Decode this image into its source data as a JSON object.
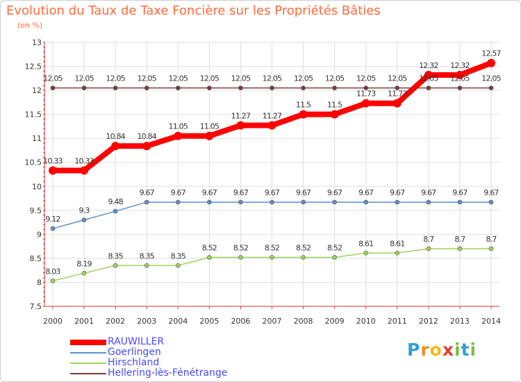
{
  "chart_data": {
    "type": "line",
    "title": "Evolution du Taux de Taxe Foncière sur les Propriétés Bâties",
    "unit_label": "(en %)",
    "x": [
      "2000",
      "2001",
      "2002",
      "2003",
      "2004",
      "2005",
      "2006",
      "2007",
      "2008",
      "2009",
      "2010",
      "2011",
      "2012",
      "2013",
      "2014"
    ],
    "ylim": [
      7.5,
      13
    ],
    "yticks": [
      "7.5",
      "8",
      "8.5",
      "9",
      "9.5",
      "10",
      "10.5",
      "11",
      "11.5",
      "12",
      "12.5",
      "13"
    ],
    "series": [
      {
        "name": "RAUWILLER",
        "color": "#ff0000",
        "values": [
          10.33,
          10.33,
          10.84,
          10.84,
          11.05,
          11.05,
          11.27,
          11.27,
          11.5,
          11.5,
          11.73,
          11.73,
          12.32,
          12.32,
          12.57
        ],
        "labels": [
          "10.33",
          "10.33",
          "10.84",
          "10.84",
          "11.05",
          "11.05",
          "11.27",
          "11.27",
          "11.5",
          "11.5",
          "11.73",
          "11.73",
          "12.32",
          "12.32",
          "12.57"
        ]
      },
      {
        "name": "Goerlingen",
        "color": "#5b8fc9",
        "values": [
          9.12,
          9.3,
          9.48,
          9.67,
          9.67,
          9.67,
          9.67,
          9.67,
          9.67,
          9.67,
          9.67,
          9.67,
          9.67,
          9.67,
          9.67
        ],
        "labels": [
          "9.12",
          "9.3",
          "9.48",
          "9.67",
          "9.67",
          "9.67",
          "9.67",
          "9.67",
          "9.67",
          "9.67",
          "9.67",
          "9.67",
          "9.67",
          "9.67",
          "9.67"
        ]
      },
      {
        "name": "Hirschland",
        "color": "#9ed25a",
        "values": [
          8.03,
          8.19,
          8.35,
          8.35,
          8.35,
          8.52,
          8.52,
          8.52,
          8.52,
          8.52,
          8.61,
          8.61,
          8.7,
          8.7,
          8.7
        ],
        "labels": [
          "8.03",
          "8.19",
          "8.35",
          "8.35",
          "8.35",
          "8.52",
          "8.52",
          "8.52",
          "8.52",
          "8.52",
          "8.61",
          "8.61",
          "8.7",
          "8.7",
          "8.7"
        ]
      },
      {
        "name": "Hellering-lès-Fénétrange",
        "color": "#7a3b3b",
        "values": [
          12.05,
          12.05,
          12.05,
          12.05,
          12.05,
          12.05,
          12.05,
          12.05,
          12.05,
          12.05,
          12.05,
          12.05,
          12.05,
          12.05,
          12.05
        ],
        "labels": [
          "12.05",
          "12.05",
          "12.05",
          "12.05",
          "12.05",
          "12.05",
          "12.05",
          "12.05",
          "12.05",
          "12.05",
          "12.05",
          "12.05",
          "12.05",
          "12.05",
          "12.05"
        ]
      }
    ],
    "grid": true,
    "legend": "bottom-left"
  },
  "logo": {
    "letters": [
      "P",
      "r",
      "o",
      "x",
      "i",
      "t",
      "i"
    ],
    "colors": [
      "#2e9fd8",
      "#f08b1f",
      "#f3b81a",
      "#e63c2f",
      "#7cbf3f",
      "#2e9fd8",
      "#7cbf3f"
    ]
  }
}
